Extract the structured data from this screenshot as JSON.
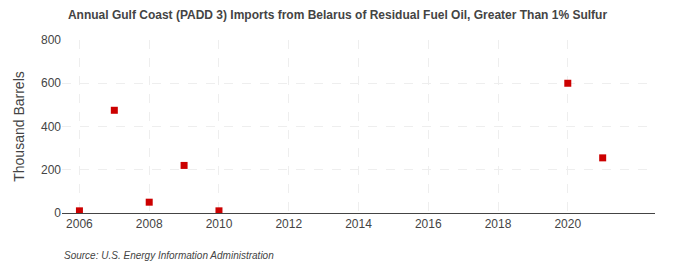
{
  "chart_data": {
    "type": "scatter",
    "title": "Annual Gulf Coast (PADD 3) Imports from Belarus of Residual Fuel Oil, Greater Than 1% Sulfur",
    "ylabel": "Thousand Barrels",
    "annotations": [
      "Source: U.S. Energy Information Administration"
    ],
    "x": [
      2006,
      2007,
      2008,
      2009,
      2010,
      2020,
      2021
    ],
    "values": [
      10,
      475,
      50,
      220,
      10,
      600,
      255
    ],
    "color": "#cc0000",
    "marker": "square",
    "xlim": [
      2005.5,
      2022.5
    ],
    "xticks": [
      2006,
      2008,
      2010,
      2012,
      2014,
      2016,
      2018,
      2020
    ],
    "ylim": [
      0,
      800
    ],
    "yticks": [
      0,
      200,
      400,
      600,
      800
    ],
    "grid": true
  }
}
